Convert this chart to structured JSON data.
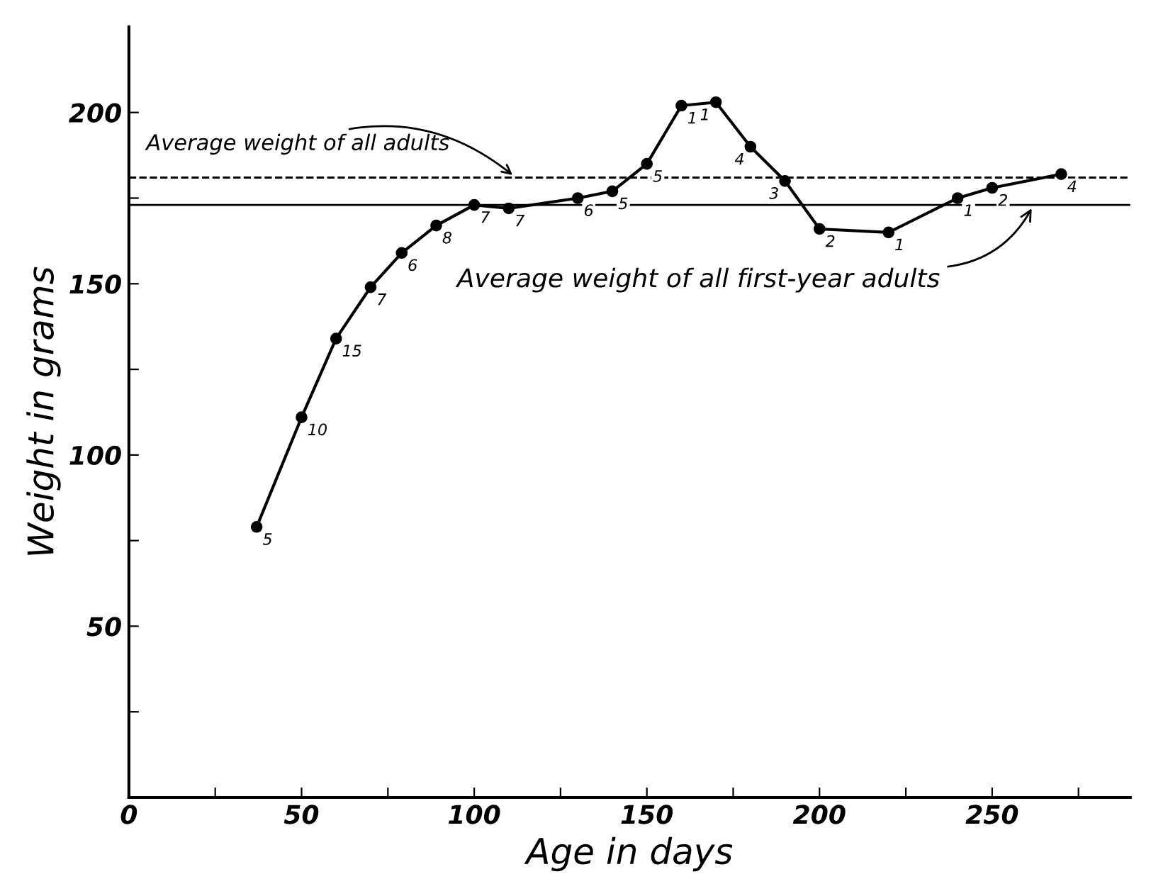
{
  "chart_data": {
    "type": "line",
    "xlabel": "Age in days",
    "ylabel": "Weight in grams",
    "x": [
      37,
      50,
      60,
      70,
      79,
      89,
      100,
      110,
      130,
      140,
      150,
      160,
      170,
      180,
      190,
      200,
      220,
      240,
      250,
      270
    ],
    "series": [
      {
        "color": "#000000",
        "values": [
          79,
          111,
          134,
          149,
          159,
          167,
          173,
          172,
          175,
          177,
          185,
          202,
          203,
          190,
          180,
          166,
          165,
          175,
          178,
          182
        ]
      }
    ],
    "value_labels": [
      "5",
      "10",
      "15",
      "7",
      "6",
      "8",
      "7",
      "7",
      "6",
      "5",
      "5",
      "1",
      "1",
      "4",
      "3",
      "2",
      "1",
      "1",
      "2",
      "4"
    ],
    "marker": "circle",
    "line_style": "solid",
    "grid": false,
    "legend": false,
    "xlim": [
      0,
      290
    ],
    "ylim": [
      0,
      225
    ],
    "xticks": [
      0,
      {
        "value": 25,
        "label": null
      },
      50,
      {
        "value": 75,
        "label": null
      },
      100,
      {
        "value": 125,
        "label": null
      },
      150,
      {
        "value": 175,
        "label": null
      },
      200,
      {
        "value": 225,
        "label": null
      },
      250,
      {
        "value": 275,
        "label": null
      }
    ],
    "yticks": [
      {
        "value": 25,
        "label": null
      },
      50,
      {
        "value": 75,
        "label": null
      },
      100,
      {
        "value": 125,
        "label": null
      },
      150,
      {
        "value": 175,
        "label": null
      },
      200
    ],
    "ref_lines": [
      {
        "axis": "y",
        "value": 181,
        "label": "Average weight of all adults",
        "line_style": "dashed",
        "color": "#000000"
      },
      {
        "axis": "y",
        "value": 173,
        "label": "Average weight of all first-year adults",
        "line_style": "solid",
        "color": "#000000"
      }
    ]
  }
}
